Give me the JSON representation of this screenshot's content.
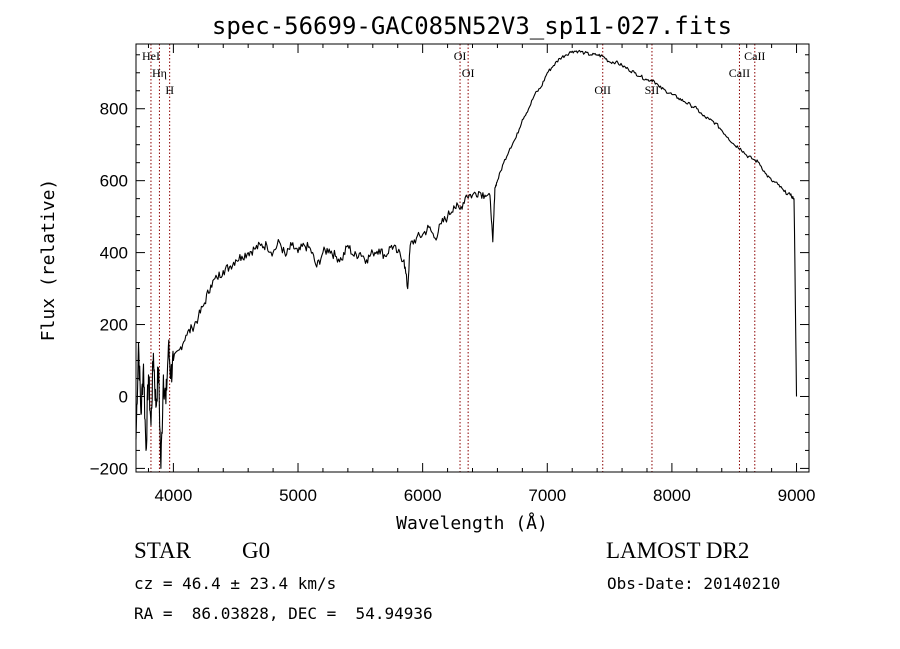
{
  "chart_data": {
    "type": "line",
    "title": "spec-56699-GAC085N52V3_sp11-027.fits",
    "xlabel": "Wavelength (Å)",
    "ylabel": "Flux (relative)",
    "xlim": [
      3700,
      9100
    ],
    "ylim": [
      -210,
      980
    ],
    "xticks": [
      4000,
      5000,
      6000,
      7000,
      8000,
      9000
    ],
    "yticks": [
      -200,
      0,
      200,
      400,
      600,
      800
    ],
    "grid": false,
    "line_color": "#000000",
    "marker_color": "#8b0000",
    "series": [
      {
        "x": [
          3700,
          3720,
          3740,
          3760,
          3780,
          3800,
          3820,
          3840,
          3860,
          3880,
          3900,
          3920,
          3940,
          3960,
          3980,
          4000,
          4050,
          4100,
          4150,
          4200,
          4250,
          4300,
          4350,
          4400,
          4450,
          4500,
          4550,
          4600,
          4650,
          4700,
          4750,
          4800,
          4850,
          4900,
          4950,
          5000,
          5050,
          5100,
          5150,
          5200,
          5250,
          5300,
          5350,
          5400,
          5450,
          5500,
          5550,
          5600,
          5650,
          5700,
          5750,
          5800,
          5850,
          5880,
          5900,
          5950,
          6000,
          6050,
          6100,
          6150,
          6200,
          6250,
          6300,
          6350,
          6400,
          6450,
          6500,
          6540,
          6563,
          6580,
          6600,
          6650,
          6700,
          6750,
          6800,
          6850,
          6900,
          6950,
          7000,
          7050,
          7100,
          7150,
          7200,
          7250,
          7300,
          7350,
          7400,
          7450,
          7500,
          7550,
          7600,
          7650,
          7700,
          7750,
          7800,
          7850,
          7900,
          7950,
          8000,
          8050,
          8100,
          8150,
          8200,
          8250,
          8300,
          8350,
          8400,
          8450,
          8500,
          8550,
          8600,
          8650,
          8700,
          8750,
          8800,
          8850,
          8900,
          8950,
          8980,
          9000
        ],
        "y": [
          -120,
          150,
          -50,
          90,
          -150,
          60,
          -80,
          120,
          -30,
          80,
          -200,
          60,
          -20,
          140,
          60,
          100,
          130,
          170,
          190,
          220,
          260,
          310,
          330,
          350,
          360,
          380,
          390,
          400,
          410,
          420,
          420,
          400,
          430,
          390,
          420,
          400,
          420,
          410,
          360,
          400,
          410,
          390,
          380,
          420,
          390,
          400,
          380,
          400,
          410,
          390,
          420,
          400,
          380,
          300,
          420,
          440,
          450,
          470,
          440,
          480,
          500,
          530,
          520,
          560,
          560,
          570,
          560,
          560,
          430,
          580,
          600,
          650,
          690,
          720,
          770,
          800,
          840,
          860,
          900,
          920,
          940,
          950,
          960,
          960,
          955,
          950,
          950,
          945,
          930,
          930,
          920,
          910,
          900,
          890,
          880,
          880,
          860,
          850,
          840,
          830,
          820,
          810,
          800,
          780,
          770,
          760,
          740,
          720,
          700,
          690,
          670,
          660,
          650,
          620,
          600,
          590,
          570,
          560,
          550,
          0
        ]
      }
    ],
    "lines": [
      {
        "label": "HeI",
        "x": 3820
      },
      {
        "label": "Hη",
        "x": 3888
      },
      {
        "label": "H",
        "x": 3970
      },
      {
        "label": "OI",
        "x": 6300
      },
      {
        "label": "OI",
        "x": 6365
      },
      {
        "label": "OII",
        "x": 7445
      },
      {
        "label": "SII",
        "x": 7840
      },
      {
        "label": "CaII",
        "x": 8542
      },
      {
        "label": "CaII",
        "x": 8665
      }
    ]
  },
  "info": {
    "class_label": "STAR",
    "subclass": "G0",
    "survey": "LAMOST DR2",
    "cz": "cz = 46.4 ± 23.4 km/s",
    "obs_date": "Obs-Date: 20140210",
    "coords": "RA =  86.03828, DEC =  54.94936"
  }
}
